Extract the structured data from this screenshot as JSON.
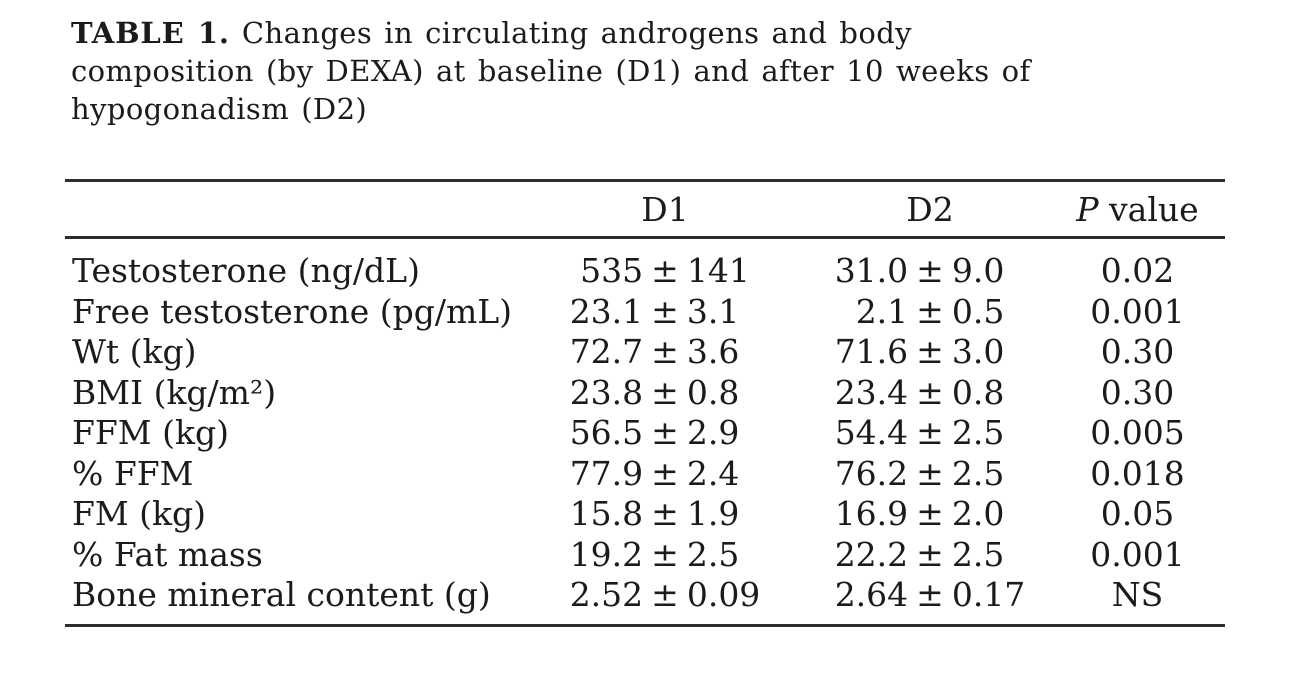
{
  "page": {
    "background_color": "#ffffff",
    "text_color": "#1b1b1b",
    "rule_color": "#2e2e2e"
  },
  "caption": {
    "label": "TABLE 1.",
    "text": "Changes in circulating androgens and body\ncomposition (by DEXA) at baseline (D1) and after 10 weeks of\nhypogonadism (D2)"
  },
  "table": {
    "columns": [
      "",
      "D1",
      "D2",
      "P value"
    ],
    "p_header": {
      "italic": "P",
      "rest": " value"
    },
    "plus_minus": "±",
    "rows": [
      {
        "label": "Testosterone (ng/dL)",
        "d1": "535 ± 141",
        "d2": "31.0 ± 9.0",
        "p": "0.02"
      },
      {
        "label": "Free testosterone (pg/mL)",
        "d1": "23.1 ± 3.1",
        "d2": "2.1 ± 0.5",
        "p": "0.001"
      },
      {
        "label": "Wt (kg)",
        "d1": "72.7 ± 3.6",
        "d2": "71.6 ± 3.0",
        "p": "0.30"
      },
      {
        "label": "BMI (kg/m²)",
        "d1": "23.8 ± 0.8",
        "d2": "23.4 ± 0.8",
        "p": "0.30"
      },
      {
        "label": "FFM (kg)",
        "d1": "56.5 ± 2.9",
        "d2": "54.4 ± 2.5",
        "p": "0.005"
      },
      {
        "label": "% FFM",
        "d1": "77.9 ± 2.4",
        "d2": "76.2 ± 2.5",
        "p": "0.018"
      },
      {
        "label": "FM (kg)",
        "d1": "15.8 ± 1.9",
        "d2": "16.9 ± 2.0",
        "p": "0.05"
      },
      {
        "label": "% Fat mass",
        "d1": "19.2 ± 2.5",
        "d2": "22.2 ± 2.5",
        "p": "0.001"
      },
      {
        "label": "Bone mineral content (g)",
        "d1": "2.52 ± 0.09",
        "d2": "2.64 ± 0.17",
        "p": "NS"
      }
    ]
  },
  "chart_data": {
    "type": "table",
    "title": "TABLE 1. Changes in circulating androgens and body composition (by DEXA) at baseline (D1) and after 10 weeks of hypogonadism (D2)",
    "columns": [
      "",
      "D1",
      "D2",
      "P value"
    ],
    "rows": [
      [
        "Testosterone (ng/dL)",
        "535 ± 141",
        "31.0 ± 9.0",
        "0.02"
      ],
      [
        "Free testosterone (pg/mL)",
        "23.1 ± 3.1",
        "2.1 ± 0.5",
        "0.001"
      ],
      [
        "Wt (kg)",
        "72.7 ± 3.6",
        "71.6 ± 3.0",
        "0.30"
      ],
      [
        "BMI (kg/m²)",
        "23.8 ± 0.8",
        "23.4 ± 0.8",
        "0.30"
      ],
      [
        "FFM (kg)",
        "56.5 ± 2.9",
        "54.4 ± 2.5",
        "0.005"
      ],
      [
        "% FFM",
        "77.9 ± 2.4",
        "76.2 ± 2.5",
        "0.018"
      ],
      [
        "FM (kg)",
        "15.8 ± 1.9",
        "16.9 ± 2.0",
        "0.05"
      ],
      [
        "% Fat mass",
        "19.2 ± 2.5",
        "22.2 ± 2.5",
        "0.001"
      ],
      [
        "Bone mineral content (g)",
        "2.52 ± 0.09",
        "2.64 ± 0.17",
        "NS"
      ]
    ]
  }
}
